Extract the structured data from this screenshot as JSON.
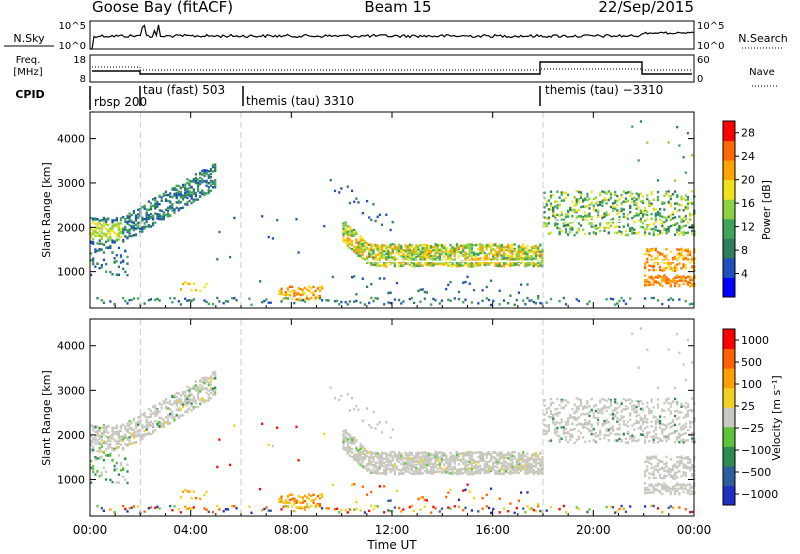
{
  "header": {
    "radar": "Goose Bay (fitACF)",
    "beam": "Beam 15",
    "date": "22/Sep/2015"
  },
  "noise_panel": {
    "left_label": "N.Sky",
    "right_label": "N.Search",
    "left_ticks": [
      "10^5",
      "10^0"
    ],
    "right_ticks": [
      "10^5",
      "10^0"
    ]
  },
  "freq_panel": {
    "left_label_1": "Freq.",
    "left_label_2": "[MHz]",
    "right_label": "Nave",
    "left_ticks": [
      "18",
      "8"
    ],
    "right_ticks": [
      "60",
      "0"
    ]
  },
  "cpid_panel": {
    "label": "CPID",
    "programs": [
      "rbsp 200",
      "tau (fast) 503",
      "themis (tau) 3310",
      "themis (tau) −3310"
    ]
  },
  "colors": {
    "power": [
      "#0000ff",
      "#1e4fbf",
      "#2e7d5b",
      "#3da55a",
      "#8ed23f",
      "#f0e11e",
      "#ffa500",
      "#ff6a00",
      "#ff0000"
    ],
    "velocity": [
      "#2030c0",
      "#2e5f9a",
      "#2f8a4f",
      "#5fc23a",
      "#c8c8c0",
      "#f0d020",
      "#ffa000",
      "#ff6000",
      "#ff0000"
    ],
    "ground_scatter": "#c8c8c0",
    "dashed_line": "#c8c8c8"
  },
  "chart_data": [
    {
      "type": "heatmap",
      "name": "Power",
      "ylabel": "Slant Range [km]",
      "ylim": [
        180,
        4600
      ],
      "yticks": [
        1000,
        2000,
        3000,
        4000
      ],
      "xticks": [
        "00:00",
        "04:00",
        "08:00",
        "12:00",
        "16:00",
        "20:00",
        "00:00"
      ],
      "xlim_hours": [
        0,
        24
      ],
      "colorbar": {
        "label": "Power [dB]",
        "ticks": [
          "4",
          "8",
          "12",
          "16",
          "20",
          "24",
          "28"
        ],
        "range": [
          0,
          30
        ]
      },
      "features": [
        {
          "t0": 0.0,
          "t1": 1.0,
          "r0": 1300,
          "r1": 2500,
          "level": 4
        },
        {
          "t0": 1.0,
          "t1": 5.0,
          "r0": 2100,
          "r1": 3200,
          "level": 2
        },
        {
          "t0": 10.0,
          "t1": 18.0,
          "r0": 1000,
          "r1": 1800,
          "level": 5
        },
        {
          "t0": 18.0,
          "t1": 24.0,
          "r0": 1800,
          "r1": 2800,
          "level": 4
        },
        {
          "t0": 22.0,
          "t1": 24.0,
          "r0": 400,
          "r1": 1500,
          "level": 7
        }
      ]
    },
    {
      "type": "heatmap",
      "name": "Velocity",
      "ylabel": "Slant Range [km]",
      "ylim": [
        180,
        4600
      ],
      "yticks": [
        1000,
        2000,
        3000,
        4000
      ],
      "xticks": [
        "00:00",
        "04:00",
        "08:00",
        "12:00",
        "16:00",
        "20:00",
        "00:00"
      ],
      "xlabel": "Time UT",
      "xlim_hours": [
        0,
        24
      ],
      "colorbar": {
        "label": "Velocity [m s⁻¹]",
        "ticks": [
          "1000",
          "500",
          "100",
          "25",
          "−25",
          "−100",
          "−500",
          "−1000"
        ]
      },
      "features": [
        {
          "t0": 0.0,
          "t1": 5.0,
          "r0": 1500,
          "r1": 3200,
          "kind": "ground"
        },
        {
          "t0": 10.0,
          "t1": 18.0,
          "r0": 1000,
          "r1": 1700,
          "kind": "ground"
        },
        {
          "t0": 18.0,
          "t1": 24.0,
          "r0": 1500,
          "r1": 2800,
          "kind": "ground"
        },
        {
          "t0": 3.5,
          "t1": 9.5,
          "r0": 250,
          "r1": 800,
          "level": -3
        }
      ]
    }
  ]
}
